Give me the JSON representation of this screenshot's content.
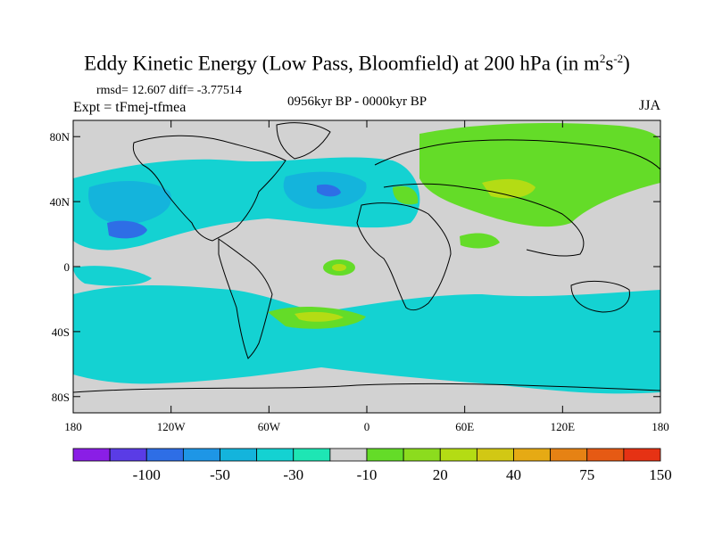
{
  "title": {
    "main": "Eddy Kinetic Energy (Low Pass, Bloomfield) at 200 hPa (in m",
    "sup1": "2",
    "mid": "s",
    "sup2": "-2",
    "end": ")"
  },
  "stats": "rmsd= 12.607 diff= -3.77514",
  "experiment": "Expt = tFmej-tfmea",
  "period": "0956kyr BP - 0000kyr BP",
  "season": "JJA",
  "axes": {
    "lat_labels": [
      "80N",
      "40N",
      "0",
      "40S",
      "80S"
    ],
    "lon_labels": [
      "180",
      "120W",
      "60W",
      "0",
      "60E",
      "120E",
      "180"
    ]
  },
  "colorbar": {
    "labels": [
      "-100",
      "-50",
      "-30",
      "-10",
      "20",
      "40",
      "75",
      "150"
    ],
    "colors": [
      "#8a1ee6",
      "#5a3ce6",
      "#2e6ee6",
      "#1e96e6",
      "#14b4dc",
      "#14d2d2",
      "#1ee6b4",
      "#d2d2d2",
      "#64dc28",
      "#8cdc1e",
      "#b4dc14",
      "#d2c814",
      "#e6aa14",
      "#e68214",
      "#e65a14",
      "#e63214"
    ]
  },
  "colors": {
    "ocean_grey": "#d2d2d2",
    "cyan": "#14d2d2",
    "light_blue": "#14b4dc",
    "blue": "#2e6ee6",
    "green": "#64dc28",
    "yellow_green": "#b4dc14"
  }
}
